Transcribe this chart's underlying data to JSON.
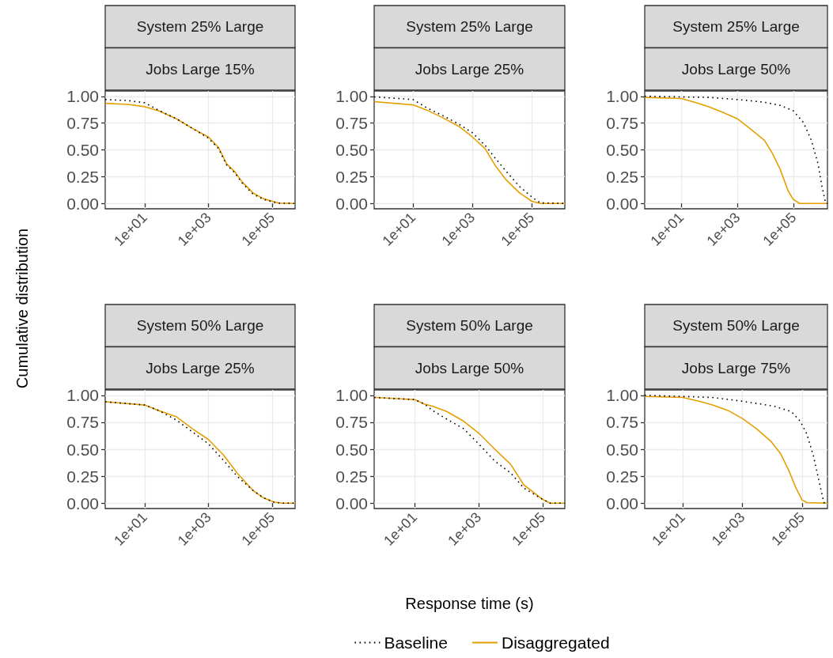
{
  "chart_data": [
    {
      "type": "line",
      "title": "System 25% Large",
      "subtitle": "Jobs Large 15%",
      "ylabel": "Cumulative distribution",
      "log": "x",
      "grid": true,
      "marker": "none",
      "xlim": [
        0.58,
        520000
      ],
      "ylim": [
        -0.05,
        1.05
      ],
      "xticks": [
        {
          "value": 10,
          "label": "1e+01"
        },
        {
          "value": 1000,
          "label": "1e+03"
        },
        {
          "value": 100000,
          "label": "1e+05"
        }
      ],
      "yticks": [
        {
          "value": 0,
          "label": "0.00"
        },
        {
          "value": 0.25,
          "label": "0.25"
        },
        {
          "value": 0.5,
          "label": "0.50"
        },
        {
          "value": 0.75,
          "label": "0.75"
        },
        {
          "value": 1,
          "label": "1.00"
        }
      ],
      "series": [
        {
          "color": "#000000",
          "line_style": "dotted",
          "x": [
            0.58,
            3,
            10,
            27,
            100,
            316,
            1000,
            2100,
            3700,
            6500,
            11500,
            24500,
            52000,
            100000,
            162000,
            520000
          ],
          "values": [
            0.97,
            0.96,
            0.94,
            0.87,
            0.79,
            0.7,
            0.61,
            0.51,
            0.36,
            0.29,
            0.19,
            0.09,
            0.04,
            0.015,
            0.003,
            0
          ]
        },
        {
          "color": "#e69f00",
          "line_style": "solid",
          "x": [
            0.58,
            3,
            10,
            27,
            100,
            316,
            1000,
            2100,
            3700,
            6500,
            11500,
            24500,
            52000,
            100000,
            162000,
            520000
          ],
          "values": [
            0.935,
            0.925,
            0.903,
            0.866,
            0.79,
            0.7,
            0.62,
            0.52,
            0.37,
            0.3,
            0.2,
            0.1,
            0.045,
            0.02,
            0.003,
            0
          ]
        }
      ]
    },
    {
      "type": "line",
      "title": "System 25% Large",
      "subtitle": "Jobs Large 25%",
      "log": "x",
      "grid": true,
      "marker": "none",
      "xlim": [
        0.49,
        1300000
      ],
      "ylim": [
        -0.05,
        1.05
      ],
      "xticks": [
        {
          "value": 10,
          "label": "1e+01"
        },
        {
          "value": 1000,
          "label": "1e+03"
        },
        {
          "value": 100000,
          "label": "1e+05"
        }
      ],
      "yticks": [
        {
          "value": 0,
          "label": "0.00"
        },
        {
          "value": 0.25,
          "label": "0.25"
        },
        {
          "value": 0.5,
          "label": "0.50"
        },
        {
          "value": 0.75,
          "label": "0.75"
        },
        {
          "value": 1,
          "label": "1.00"
        }
      ],
      "series": [
        {
          "color": "#000000",
          "line_style": "dotted",
          "x": [
            0.49,
            10,
            30,
            100,
            350,
            1000,
            2700,
            6000,
            13700,
            38000,
            100000,
            195000,
            1300000
          ],
          "values": [
            0.995,
            0.97,
            0.89,
            0.82,
            0.74,
            0.66,
            0.54,
            0.42,
            0.3,
            0.16,
            0.06,
            0.005,
            0
          ]
        },
        {
          "color": "#e69f00",
          "line_style": "solid",
          "x": [
            0.49,
            10,
            30,
            100,
            350,
            1000,
            2700,
            6000,
            13700,
            38000,
            100000,
            195000,
            1300000
          ],
          "values": [
            0.95,
            0.92,
            0.87,
            0.8,
            0.72,
            0.62,
            0.51,
            0.35,
            0.22,
            0.1,
            0.02,
            0,
            0
          ]
        }
      ]
    },
    {
      "type": "line",
      "title": "System 25% Large",
      "subtitle": "Jobs Large 50%",
      "log": "x",
      "grid": true,
      "marker": "none",
      "xlim": [
        0.5,
        1600000
      ],
      "ylim": [
        -0.05,
        1.05
      ],
      "xticks": [
        {
          "value": 10,
          "label": "1e+01"
        },
        {
          "value": 1000,
          "label": "1e+03"
        },
        {
          "value": 100000,
          "label": "1e+05"
        }
      ],
      "yticks": [
        {
          "value": 0,
          "label": "0.00"
        },
        {
          "value": 0.25,
          "label": "0.25"
        },
        {
          "value": 0.5,
          "label": "0.50"
        },
        {
          "value": 0.75,
          "label": "0.75"
        },
        {
          "value": 1,
          "label": "1.00"
        }
      ],
      "series": [
        {
          "color": "#000000",
          "line_style": "dotted",
          "x": [
            0.5,
            100,
            1000,
            9100,
            33000,
            96000,
            224000,
            427000,
            740000,
            1000000,
            1380000,
            1600000
          ],
          "values": [
            1,
            0.99,
            0.97,
            0.945,
            0.915,
            0.866,
            0.755,
            0.59,
            0.37,
            0.17,
            0,
            0
          ]
        },
        {
          "color": "#e69f00",
          "line_style": "solid",
          "x": [
            0.5,
            10,
            35,
            100,
            300,
            1000,
            3100,
            9100,
            17400,
            33000,
            63000,
            96000,
            162000,
            1600000
          ],
          "values": [
            0.99,
            0.98,
            0.94,
            0.9,
            0.85,
            0.79,
            0.69,
            0.59,
            0.47,
            0.32,
            0.12,
            0.04,
            0,
            0
          ]
        }
      ]
    },
    {
      "type": "line",
      "title": "System 50% Large",
      "subtitle": "Jobs Large 25%",
      "log": "x",
      "grid": true,
      "marker": "none",
      "xlim": [
        0.58,
        520000
      ],
      "ylim": [
        -0.05,
        1.05
      ],
      "xticks": [
        {
          "value": 10,
          "label": "1e+01"
        },
        {
          "value": 1000,
          "label": "1e+03"
        },
        {
          "value": 100000,
          "label": "1e+05"
        }
      ],
      "yticks": [
        {
          "value": 0,
          "label": "0.00"
        },
        {
          "value": 0.25,
          "label": "0.25"
        },
        {
          "value": 0.5,
          "label": "0.50"
        },
        {
          "value": 0.75,
          "label": "0.75"
        },
        {
          "value": 1,
          "label": "1.00"
        }
      ],
      "series": [
        {
          "color": "#000000",
          "line_style": "dotted",
          "x": [
            0.58,
            10,
            27,
            100,
            316,
            1000,
            3100,
            7900,
            24500,
            52000,
            112000,
            200000,
            520000
          ],
          "values": [
            0.94,
            0.91,
            0.86,
            0.77,
            0.66,
            0.55,
            0.39,
            0.25,
            0.12,
            0.05,
            0.01,
            0,
            0
          ]
        },
        {
          "color": "#e69f00",
          "line_style": "solid",
          "x": [
            0.58,
            10,
            27,
            100,
            316,
            1000,
            3100,
            7900,
            24500,
            52000,
            112000,
            200000,
            520000
          ],
          "values": [
            0.94,
            0.91,
            0.86,
            0.8,
            0.69,
            0.59,
            0.44,
            0.28,
            0.12,
            0.05,
            0.01,
            0,
            0
          ]
        }
      ]
    },
    {
      "type": "line",
      "title": "System 50% Large",
      "subtitle": "Jobs Large 50%",
      "xlabel": "Response time (s)",
      "legend": "bottom",
      "log": "x",
      "grid": true,
      "marker": "none",
      "xlim": [
        0.55,
        490000
      ],
      "ylim": [
        -0.05,
        1.05
      ],
      "xticks": [
        {
          "value": 10,
          "label": "1e+01"
        },
        {
          "value": 1000,
          "label": "1e+03"
        },
        {
          "value": 100000,
          "label": "1e+05"
        }
      ],
      "yticks": [
        {
          "value": 0,
          "label": "0.00"
        },
        {
          "value": 0.25,
          "label": "0.25"
        },
        {
          "value": 0.5,
          "label": "0.50"
        },
        {
          "value": 0.75,
          "label": "0.75"
        },
        {
          "value": 1,
          "label": "1.00"
        }
      ],
      "series": [
        {
          "name": "Baseline",
          "color": "#000000",
          "line_style": "dotted",
          "x": [
            0.55,
            10,
            20,
            36,
            100,
            340,
            1000,
            3200,
            10000,
            25700,
            93000,
            170000,
            490000
          ],
          "values": [
            0.98,
            0.96,
            0.92,
            0.86,
            0.78,
            0.69,
            0.55,
            0.39,
            0.28,
            0.14,
            0.04,
            0,
            0
          ]
        },
        {
          "name": "Disaggregated",
          "color": "#e69f00",
          "line_style": "solid",
          "x": [
            0.55,
            10,
            20,
            36,
            100,
            340,
            1000,
            3200,
            10000,
            25700,
            93000,
            170000,
            490000
          ],
          "values": [
            0.98,
            0.96,
            0.92,
            0.9,
            0.85,
            0.76,
            0.65,
            0.5,
            0.36,
            0.17,
            0.04,
            0,
            0
          ]
        }
      ]
    },
    {
      "type": "line",
      "title": "System 50% Large",
      "subtitle": "Jobs Large 75%",
      "log": "x",
      "grid": true,
      "marker": "none",
      "xlim": [
        0.54,
        710000
      ],
      "ylim": [
        -0.05,
        1.05
      ],
      "xticks": [
        {
          "value": 10,
          "label": "1e+01"
        },
        {
          "value": 1000,
          "label": "1e+03"
        },
        {
          "value": 100000,
          "label": "1e+05"
        }
      ],
      "yticks": [
        {
          "value": 0,
          "label": "0.00"
        },
        {
          "value": 0.25,
          "label": "0.25"
        },
        {
          "value": 0.5,
          "label": "0.50"
        },
        {
          "value": 0.75,
          "label": "0.75"
        },
        {
          "value": 1,
          "label": "1.00"
        }
      ],
      "series": [
        {
          "color": "#000000",
          "line_style": "dotted",
          "x": [
            0.54,
            100,
            1000,
            11000,
            43000,
            87000,
            145000,
            240000,
            363000,
            537000,
            710000
          ],
          "values": [
            1,
            0.98,
            0.945,
            0.9,
            0.85,
            0.76,
            0.64,
            0.44,
            0.215,
            0.005,
            0
          ]
        },
        {
          "color": "#e69f00",
          "line_style": "solid",
          "x": [
            0.54,
            10,
            35,
            100,
            330,
            1000,
            3000,
            9300,
            19000,
            35000,
            63000,
            100000,
            145000,
            710000
          ],
          "values": [
            0.99,
            0.98,
            0.945,
            0.91,
            0.86,
            0.785,
            0.69,
            0.57,
            0.46,
            0.31,
            0.14,
            0.03,
            0.005,
            0
          ]
        }
      ]
    }
  ]
}
